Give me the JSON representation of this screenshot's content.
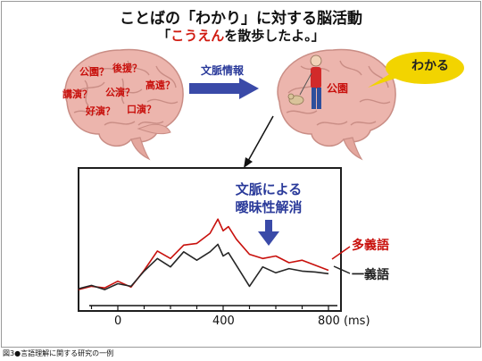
{
  "title": "ことばの「わかり」に対する脳活動",
  "subtitle": {
    "open": "「",
    "highlight": "こうえん",
    "rest": "を散歩したよ。」"
  },
  "left_brain_words": [
    "公園？",
    "後援？",
    "講演？",
    "公演？",
    "高遠？",
    "好演？",
    "口演？"
  ],
  "arrow_label": "文脈情報",
  "right_brain_word": "公園",
  "balloon_text": "わかる",
  "annotation": {
    "line1": "文脈による",
    "line2": "曖昧性解消"
  },
  "legend": {
    "multi": "多義語",
    "single": "一義語"
  },
  "x_ticks": [
    "0",
    "400",
    "800 (ms)"
  ],
  "caption": "図3●言語理解に関する研究の一例",
  "colors": {
    "red": "#c8100c",
    "blue": "#2a3a9a",
    "brain": "#ecb5ad"
  },
  "chart_data": {
    "type": "line",
    "xlim": [
      -150,
      850
    ],
    "x_unit": "ms",
    "series": [
      {
        "name": "多義語",
        "x": [
          -150,
          -100,
          -50,
          0,
          50,
          100,
          150,
          200,
          250,
          300,
          350,
          380,
          400,
          420,
          450,
          500,
          550,
          600,
          650,
          700,
          750,
          800
        ],
        "values": [
          0.2,
          0.6,
          0.4,
          1.2,
          0.5,
          2.5,
          4.8,
          3.9,
          5.5,
          5.7,
          6.9,
          8.6,
          7.2,
          7.7,
          6.2,
          4.4,
          3.9,
          4.2,
          3.4,
          3.7,
          3.1,
          2.5
        ]
      },
      {
        "name": "一義語",
        "x": [
          -150,
          -100,
          -50,
          0,
          50,
          100,
          150,
          200,
          250,
          300,
          350,
          380,
          400,
          420,
          450,
          500,
          550,
          600,
          650,
          700,
          750,
          800
        ],
        "values": [
          0.3,
          0.7,
          0.2,
          0.9,
          0.6,
          2.4,
          3.9,
          2.9,
          4.7,
          3.7,
          4.7,
          5.6,
          4.2,
          4.6,
          3.1,
          0.6,
          2.9,
          2.2,
          2.7,
          2.4,
          2.3,
          2.1
        ]
      }
    ]
  }
}
